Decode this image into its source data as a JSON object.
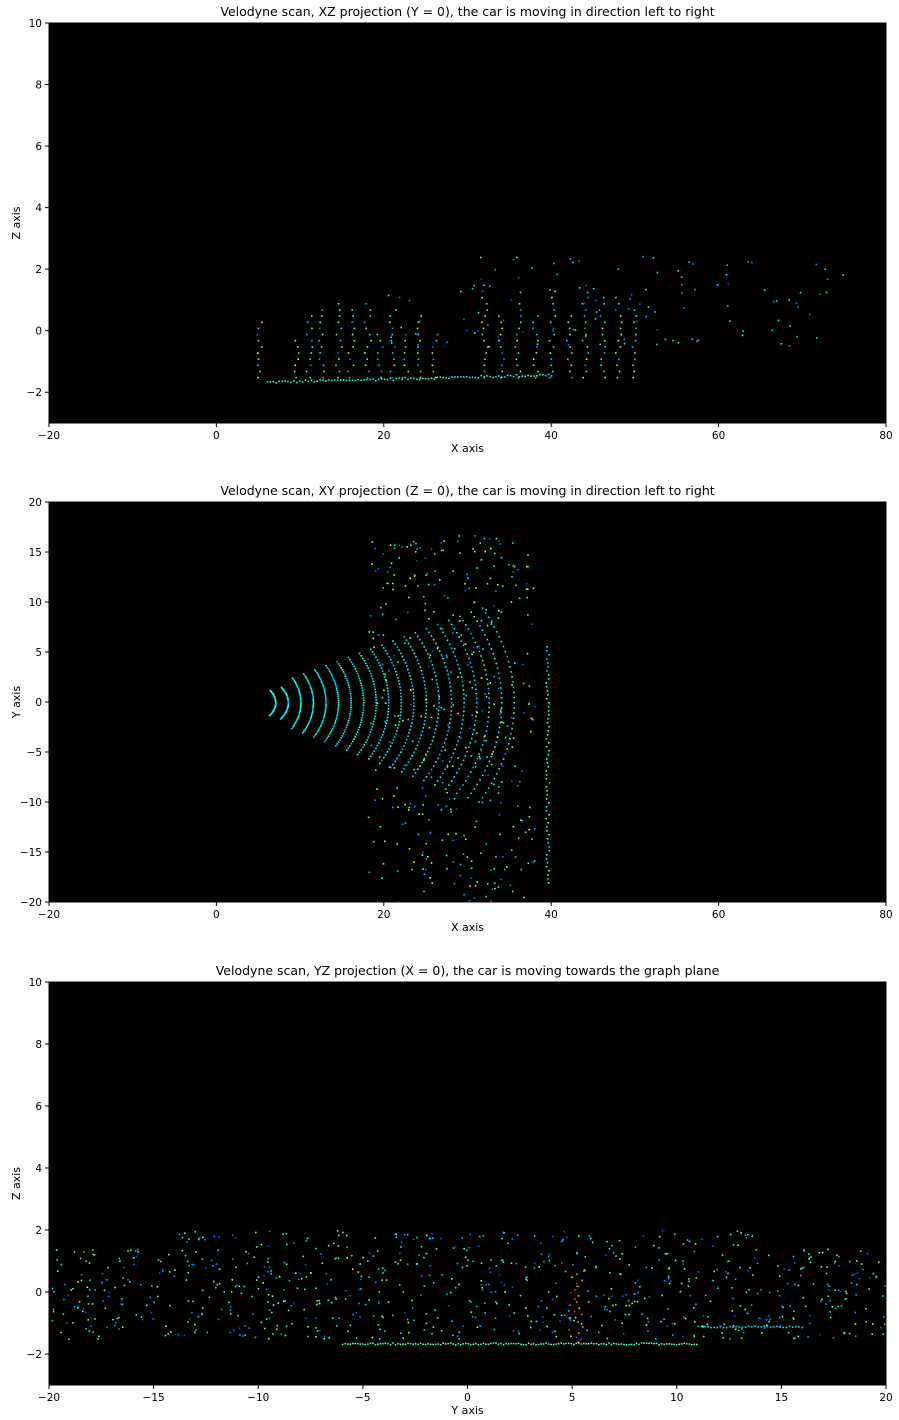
{
  "chart_data": [
    {
      "type": "scatter",
      "title": "Velodyne scan, XZ projection (Y = 0), the car is moving in direction left to right",
      "xlabel": "X axis",
      "ylabel": "Z axis",
      "xlim": [
        -20,
        80
      ],
      "ylim": [
        -3,
        10
      ],
      "xticks": [
        "−20",
        "0",
        "20",
        "40",
        "60",
        "80"
      ],
      "xtick_values": [
        -20,
        0,
        20,
        40,
        60,
        80
      ],
      "yticks": [
        "−2",
        "0",
        "2",
        "4",
        "6",
        "8",
        "10"
      ],
      "ytick_values": [
        -2,
        0,
        2,
        4,
        6,
        8,
        10
      ],
      "background": "#000000",
      "colormap": "jet",
      "grid": false,
      "legend": "none"
    },
    {
      "type": "scatter",
      "title": "Velodyne scan, XY projection (Z = 0), the car is moving in direction left to right",
      "xlabel": "X axis",
      "ylabel": "Y axis",
      "xlim": [
        -20,
        80
      ],
      "ylim": [
        -20,
        20
      ],
      "xticks": [
        "−20",
        "0",
        "20",
        "40",
        "60",
        "80"
      ],
      "xtick_values": [
        -20,
        0,
        20,
        40,
        60,
        80
      ],
      "yticks": [
        "−20",
        "−15",
        "−10",
        "−5",
        "0",
        "5",
        "10",
        "15",
        "20"
      ],
      "ytick_values": [
        -20,
        -15,
        -10,
        -5,
        0,
        5,
        10,
        15,
        20
      ],
      "background": "#000000",
      "colormap": "jet",
      "grid": false,
      "legend": "none"
    },
    {
      "type": "scatter",
      "title": "Velodyne scan, YZ projection (X = 0), the car is moving towards the graph plane",
      "xlabel": "Y axis",
      "ylabel": "Z axis",
      "xlim": [
        -20,
        20
      ],
      "ylim": [
        -3,
        10
      ],
      "xticks": [
        "−20",
        "−15",
        "−10",
        "−5",
        "0",
        "5",
        "10",
        "15",
        "20"
      ],
      "xtick_values": [
        -20,
        -15,
        -10,
        -5,
        0,
        5,
        10,
        15,
        20
      ],
      "yticks": [
        "−2",
        "0",
        "2",
        "4",
        "6",
        "8",
        "10"
      ],
      "ytick_values": [
        -2,
        0,
        2,
        4,
        6,
        8,
        10
      ],
      "background": "#000000",
      "colormap": "jet",
      "grid": false,
      "legend": "none"
    }
  ]
}
